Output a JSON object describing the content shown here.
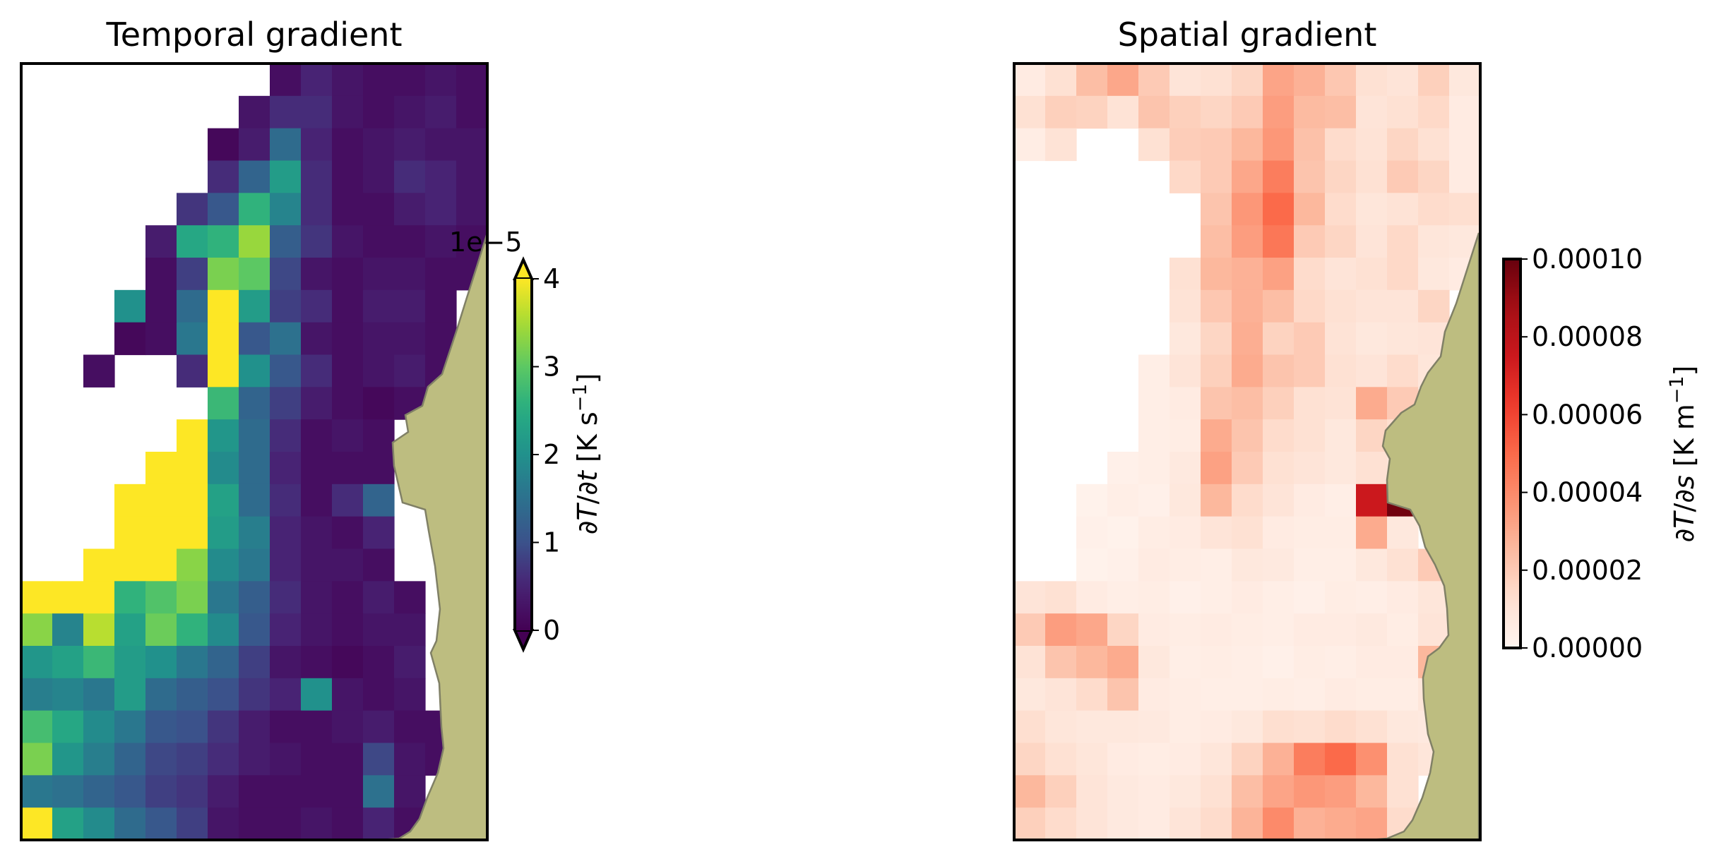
{
  "chart_data": [
    {
      "type": "heatmap",
      "title": "Temporal gradient",
      "colormap": "viridis",
      "colorbar": {
        "label": "∂T/∂t [K s⁻¹]",
        "label_parts": [
          {
            "text": "∂",
            "italic": false
          },
          {
            "text": "T",
            "italic": true
          },
          {
            "text": "/∂",
            "italic": false
          },
          {
            "text": "t",
            "italic": true
          },
          {
            "text": " [K s",
            "italic": false
          },
          {
            "text": "−1",
            "italic": false,
            "superscript": true
          },
          {
            "text": "]",
            "italic": false
          }
        ],
        "ticks": [
          "0",
          "1",
          "2",
          "3",
          "4"
        ],
        "tick_values": [
          0,
          1,
          2,
          3,
          4
        ],
        "offset_text": "1e−5",
        "scale": 1e-05,
        "vmin": 0,
        "vmax": 4,
        "extend": "both"
      },
      "land_color": "#bdbd80",
      "land_edge_color": "#808066",
      "grid": {
        "rows": 24,
        "cols": 15,
        "description": "values in units of 1e-5 K/s; null = no data (white)",
        "values": [
          [
            null,
            null,
            null,
            null,
            null,
            null,
            null,
            null,
            0.2,
            0.5,
            0.3,
            0.2,
            0.2,
            0.3,
            0.2
          ],
          [
            null,
            null,
            null,
            null,
            null,
            null,
            null,
            0.3,
            0.6,
            0.6,
            0.3,
            0.2,
            0.3,
            0.4,
            0.2
          ],
          [
            null,
            null,
            null,
            null,
            null,
            null,
            0.1,
            0.4,
            1.4,
            0.5,
            0.2,
            0.3,
            0.4,
            0.3,
            0.3
          ],
          [
            null,
            null,
            null,
            null,
            null,
            null,
            0.6,
            1.3,
            2.2,
            0.6,
            0.2,
            0.3,
            0.6,
            0.5,
            0.3
          ],
          [
            null,
            null,
            null,
            null,
            null,
            0.7,
            1.1,
            2.6,
            1.8,
            0.6,
            0.2,
            0.2,
            0.4,
            0.5,
            0.3
          ],
          [
            null,
            null,
            null,
            null,
            0.4,
            2.4,
            2.6,
            3.4,
            1.2,
            0.7,
            0.3,
            0.2,
            0.2,
            0.3,
            0.2
          ],
          [
            null,
            null,
            null,
            null,
            0.2,
            0.8,
            3.2,
            3.0,
            0.9,
            0.3,
            0.2,
            0.3,
            0.3,
            0.2,
            0.2
          ],
          [
            null,
            null,
            null,
            2.0,
            0.2,
            1.4,
            4.6,
            2.2,
            0.8,
            0.6,
            0.2,
            0.4,
            0.4,
            0.2,
            null
          ],
          [
            null,
            null,
            null,
            0.1,
            0.2,
            1.6,
            4.3,
            1.1,
            1.5,
            0.3,
            0.2,
            0.3,
            0.3,
            0.2,
            null
          ],
          [
            null,
            null,
            0.2,
            null,
            null,
            0.6,
            4.4,
            2.0,
            1.1,
            0.6,
            0.2,
            0.3,
            0.4,
            0.2,
            null
          ],
          [
            null,
            null,
            null,
            null,
            null,
            null,
            2.7,
            1.3,
            0.8,
            0.4,
            0.2,
            0.1,
            0.2,
            0.3,
            null
          ],
          [
            null,
            null,
            null,
            null,
            null,
            4.4,
            2.1,
            1.4,
            0.6,
            0.2,
            0.3,
            0.2,
            null,
            null,
            null
          ],
          [
            null,
            null,
            null,
            null,
            4.3,
            4.4,
            1.9,
            1.4,
            0.5,
            0.2,
            0.2,
            0.2,
            null,
            null,
            null
          ],
          [
            null,
            null,
            null,
            4.2,
            4.4,
            4.3,
            2.3,
            1.4,
            0.6,
            0.2,
            0.6,
            1.3,
            null,
            null,
            null
          ],
          [
            null,
            null,
            null,
            4.6,
            4.3,
            4.2,
            2.2,
            1.7,
            0.5,
            0.3,
            0.2,
            0.5,
            null,
            null,
            null
          ],
          [
            null,
            null,
            4.4,
            4.5,
            4.6,
            3.3,
            1.9,
            1.6,
            0.5,
            0.3,
            0.3,
            0.2,
            null,
            null,
            null
          ],
          [
            4.5,
            4.2,
            4.3,
            2.6,
            2.9,
            3.2,
            1.6,
            1.2,
            0.6,
            0.3,
            0.2,
            0.4,
            0.2,
            null,
            null
          ],
          [
            3.3,
            1.8,
            3.6,
            2.3,
            3.1,
            2.6,
            1.9,
            1.1,
            0.5,
            0.3,
            0.2,
            0.3,
            0.3,
            null,
            null
          ],
          [
            2.1,
            2.3,
            2.7,
            2.2,
            2.0,
            1.6,
            1.3,
            0.8,
            0.3,
            0.2,
            0.1,
            0.2,
            0.4,
            null,
            null
          ],
          [
            1.7,
            1.8,
            1.6,
            2.2,
            1.4,
            1.2,
            1.0,
            0.7,
            0.5,
            2.0,
            0.3,
            0.2,
            0.3,
            null,
            null
          ],
          [
            2.8,
            2.4,
            1.9,
            1.6,
            1.1,
            1.0,
            0.7,
            0.4,
            0.2,
            0.2,
            0.3,
            0.4,
            0.2,
            0.2,
            null
          ],
          [
            3.2,
            2.1,
            1.7,
            1.3,
            0.9,
            0.8,
            0.6,
            0.4,
            0.3,
            0.2,
            0.2,
            0.9,
            0.3,
            0.2,
            null
          ],
          [
            1.6,
            1.5,
            1.3,
            1.1,
            0.8,
            0.7,
            0.4,
            0.2,
            0.2,
            0.2,
            0.2,
            1.5,
            0.3,
            null,
            null
          ],
          [
            4.5,
            2.3,
            1.9,
            1.4,
            1.1,
            0.8,
            0.3,
            0.2,
            0.2,
            0.3,
            0.2,
            0.5,
            0.2,
            null,
            null
          ]
        ]
      }
    },
    {
      "type": "heatmap",
      "title": "Spatial gradient",
      "colormap": "Reds",
      "colorbar": {
        "label": "∂T/∂s [K m⁻¹]",
        "label_parts": [
          {
            "text": "∂",
            "italic": false
          },
          {
            "text": "T",
            "italic": true
          },
          {
            "text": "/∂",
            "italic": false
          },
          {
            "text": "s",
            "italic": true
          },
          {
            "text": " [K m",
            "italic": false
          },
          {
            "text": "−1",
            "italic": false,
            "superscript": true
          },
          {
            "text": "]",
            "italic": false
          }
        ],
        "ticks": [
          "0.00000",
          "0.00002",
          "0.00004",
          "0.00006",
          "0.00008",
          "0.00010"
        ],
        "tick_values": [
          0.0,
          2e-05,
          4e-05,
          6e-05,
          8e-05,
          0.0001
        ],
        "vmin": 0.0,
        "vmax": 0.0001,
        "extend": "neither"
      },
      "land_color": "#bdbd80",
      "land_edge_color": "#808066",
      "grid": {
        "rows": 24,
        "cols": 15,
        "description": "values in units of 1e-5 K/m; null = no data (white)",
        "values": [
          [
            0.6,
            1.2,
            2.4,
            3.1,
            2.0,
            1.0,
            1.2,
            1.6,
            3.2,
            2.8,
            2.1,
            1.2,
            1.0,
            1.8,
            0.8
          ],
          [
            1.2,
            1.8,
            1.7,
            1.1,
            2.2,
            1.8,
            1.6,
            2.0,
            3.4,
            2.5,
            2.4,
            1.0,
            1.2,
            1.5,
            0.6
          ],
          [
            0.5,
            1.1,
            null,
            null,
            1.2,
            1.9,
            2.0,
            2.6,
            3.6,
            2.3,
            1.4,
            1.1,
            1.6,
            1.2,
            0.6
          ],
          [
            null,
            null,
            null,
            null,
            null,
            1.5,
            2.0,
            3.1,
            4.4,
            2.2,
            1.6,
            1.2,
            2.0,
            1.6,
            0.6
          ],
          [
            null,
            null,
            null,
            null,
            null,
            null,
            2.2,
            3.6,
            5.0,
            2.6,
            1.4,
            0.9,
            1.1,
            1.4,
            1.3
          ],
          [
            null,
            null,
            null,
            null,
            null,
            null,
            2.4,
            3.4,
            4.6,
            2.0,
            1.6,
            1.0,
            1.5,
            0.9,
            0.8
          ],
          [
            null,
            null,
            null,
            null,
            null,
            1.2,
            2.6,
            2.8,
            3.3,
            1.4,
            1.0,
            1.2,
            1.5,
            0.8,
            0.6
          ],
          [
            null,
            null,
            null,
            null,
            null,
            1.1,
            2.1,
            2.8,
            2.4,
            1.5,
            1.2,
            1.0,
            1.0,
            1.6,
            null
          ],
          [
            null,
            null,
            null,
            null,
            null,
            0.8,
            1.6,
            2.9,
            1.7,
            2.0,
            1.1,
            0.8,
            0.9,
            1.0,
            null
          ],
          [
            null,
            null,
            null,
            null,
            0.4,
            1.0,
            1.8,
            3.0,
            2.2,
            2.0,
            1.2,
            1.0,
            1.4,
            0.9,
            null
          ],
          [
            null,
            null,
            null,
            null,
            0.4,
            0.6,
            2.2,
            2.4,
            1.8,
            1.2,
            1.1,
            3.0,
            2.0,
            null,
            null
          ],
          [
            null,
            null,
            null,
            null,
            0.4,
            0.5,
            3.0,
            2.2,
            1.4,
            1.2,
            0.8,
            1.6,
            1.3,
            null,
            null
          ],
          [
            null,
            null,
            null,
            0.3,
            0.4,
            0.7,
            3.3,
            2.0,
            1.2,
            1.0,
            0.8,
            1.2,
            1.0,
            null,
            null
          ],
          [
            null,
            null,
            0.2,
            0.4,
            0.3,
            0.8,
            2.6,
            1.4,
            1.0,
            0.6,
            0.4,
            7.5,
            9.8,
            null,
            null
          ],
          [
            null,
            null,
            0.3,
            0.2,
            0.5,
            0.6,
            1.0,
            1.2,
            0.6,
            0.5,
            0.5,
            3.0,
            0.8,
            null,
            null
          ],
          [
            null,
            null,
            0.2,
            0.3,
            0.6,
            0.5,
            0.4,
            0.8,
            0.7,
            0.4,
            0.4,
            0.8,
            1.2,
            2.0,
            null
          ],
          [
            1.0,
            1.2,
            0.6,
            0.4,
            0.5,
            0.3,
            0.4,
            0.6,
            0.4,
            0.3,
            0.5,
            0.4,
            0.6,
            0.9,
            null
          ],
          [
            2.0,
            3.4,
            3.1,
            1.6,
            0.6,
            0.5,
            0.6,
            0.5,
            0.4,
            0.6,
            0.6,
            0.7,
            0.5,
            1.0,
            1.8
          ],
          [
            1.1,
            2.2,
            2.6,
            3.0,
            0.8,
            0.4,
            0.5,
            0.4,
            0.3,
            0.5,
            0.4,
            0.6,
            0.6,
            2.6,
            4.0
          ],
          [
            0.8,
            1.0,
            1.4,
            2.2,
            0.6,
            0.5,
            0.4,
            0.4,
            0.5,
            0.4,
            0.6,
            0.5,
            0.5,
            0.9,
            3.6
          ],
          [
            1.3,
            0.9,
            0.8,
            0.8,
            0.7,
            0.5,
            0.6,
            0.8,
            1.3,
            1.2,
            1.4,
            1.2,
            0.8,
            0.7,
            null
          ],
          [
            1.6,
            1.2,
            0.9,
            0.6,
            0.5,
            0.6,
            0.9,
            1.7,
            2.8,
            4.4,
            5.0,
            3.8,
            1.2,
            0.9,
            null
          ],
          [
            2.6,
            1.8,
            1.0,
            0.7,
            0.6,
            0.8,
            1.2,
            2.4,
            3.2,
            3.6,
            3.4,
            2.6,
            1.2,
            null,
            null
          ],
          [
            1.8,
            1.4,
            1.0,
            0.7,
            0.6,
            1.0,
            1.4,
            2.7,
            4.0,
            2.8,
            3.0,
            3.2,
            1.4,
            null,
            null
          ]
        ]
      }
    }
  ]
}
